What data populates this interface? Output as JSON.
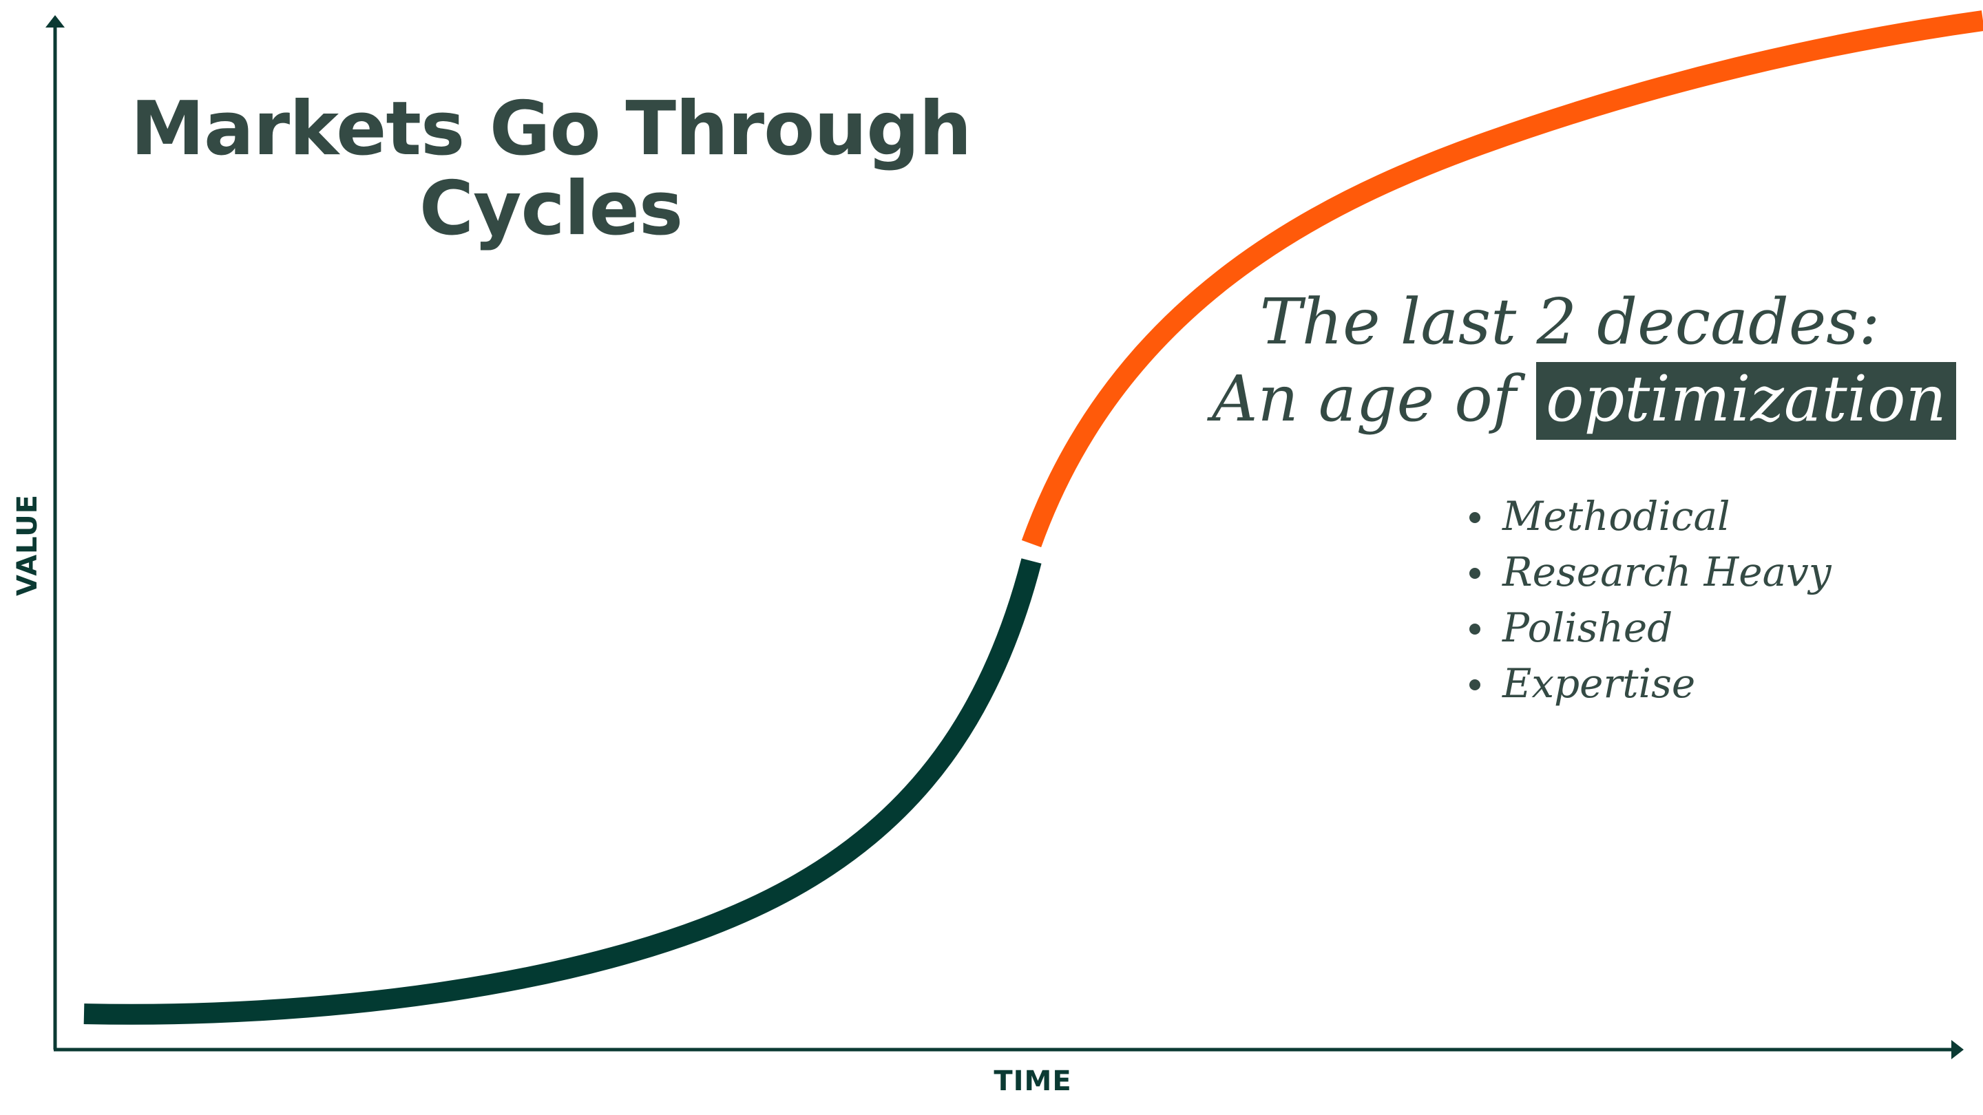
{
  "title": {
    "line1": "Markets Go Through",
    "line2": "Cycles"
  },
  "subtitle": {
    "line1": "The last 2 decades:",
    "line2_prefix": "An age of",
    "line2_highlight": "optimization"
  },
  "bullets": [
    "Methodical",
    "Research Heavy",
    "Polished",
    "Expertise"
  ],
  "axes": {
    "x_label": "TIME",
    "y_label": "VALUE"
  },
  "colors": {
    "text": "#344a44",
    "axis": "#0b3a33",
    "curve_early": "#033a32",
    "curve_late": "#ff5a0a",
    "highlight_bg": "#344a44"
  }
}
